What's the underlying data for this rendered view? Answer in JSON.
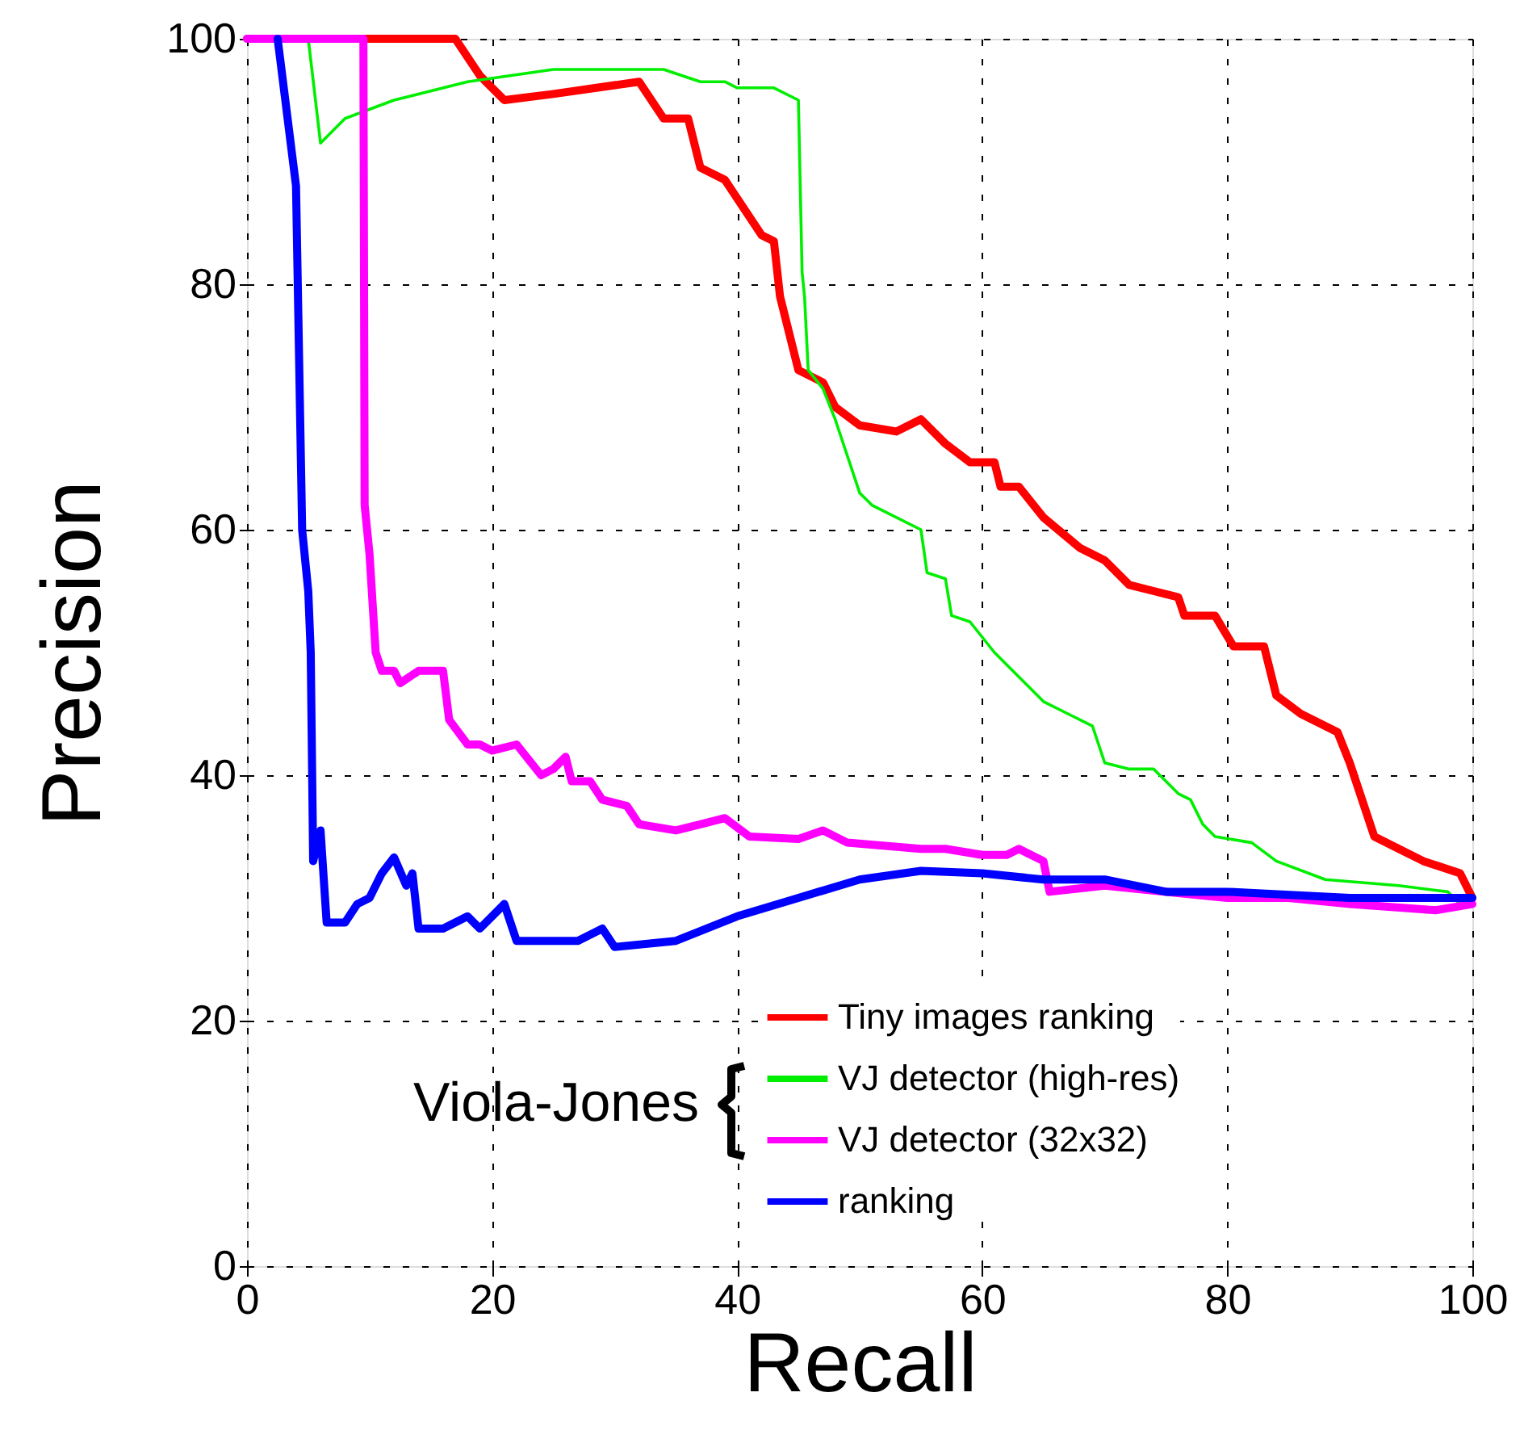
{
  "chart_data": {
    "type": "line",
    "xlabel": "Recall",
    "ylabel": "Precision",
    "xlim": [
      0,
      100
    ],
    "ylim": [
      0,
      100
    ],
    "xticks": [
      0,
      20,
      40,
      60,
      80,
      100
    ],
    "yticks": [
      0,
      20,
      40,
      60,
      80,
      100
    ],
    "grid": true,
    "legend": "bottom right",
    "line_style": "solid",
    "marker": "none",
    "annotations": [
      "Viola-Jones"
    ],
    "series": [
      {
        "name": "Tiny images ranking",
        "color": "#ff0000",
        "x": [
          0,
          17,
          19,
          21,
          25,
          32,
          34,
          36,
          37,
          39,
          42,
          43,
          43.5,
          45,
          47,
          48,
          50,
          53,
          55,
          57,
          59,
          61,
          61.5,
          63,
          65,
          68,
          70,
          72,
          74,
          76,
          76.5,
          79,
          80.5,
          83,
          84,
          86,
          89,
          90,
          91,
          92,
          94,
          96,
          99,
          100
        ],
        "values": [
          100,
          100,
          97,
          95,
          95.5,
          96.5,
          93.5,
          93.5,
          89.5,
          88.5,
          84,
          83.5,
          79,
          73,
          72,
          70,
          68.5,
          68,
          69,
          67,
          65.5,
          65.5,
          63.5,
          63.5,
          61,
          58.5,
          57.5,
          55.5,
          55,
          54.5,
          53,
          53,
          50.5,
          50.5,
          46.5,
          45,
          43.5,
          41,
          38,
          35,
          34,
          33,
          32,
          30
        ]
      },
      {
        "name": "VJ detector (high-res)",
        "color": "#00ee00",
        "x": [
          5,
          6,
          8,
          12,
          18,
          25,
          34,
          37,
          39,
          40,
          43,
          45,
          45.3,
          45.5,
          45.8,
          47,
          48,
          49,
          50,
          51,
          55,
          55.5,
          57,
          57.5,
          59,
          61,
          62,
          65,
          67,
          69,
          70,
          72,
          74,
          76,
          77,
          78,
          79,
          82,
          84,
          88,
          94,
          98,
          99
        ],
        "values": [
          100,
          91.5,
          93.5,
          95,
          96.5,
          97.5,
          97.5,
          96.5,
          96.5,
          96,
          96,
          95,
          81,
          79,
          73,
          71.5,
          69,
          66,
          63,
          62,
          60,
          56.5,
          56,
          53,
          52.5,
          50,
          49,
          46,
          45,
          44,
          41,
          40.5,
          40.5,
          38.5,
          38,
          36,
          35,
          34.5,
          33,
          31.5,
          31,
          30.5,
          29.5
        ]
      },
      {
        "name": "VJ detector (32x32)",
        "color": "#ff00ff",
        "x": [
          0,
          9.5,
          9.6,
          10,
          10.5,
          11,
          12,
          12.5,
          14,
          16,
          16.5,
          18,
          19,
          20,
          22,
          24,
          25,
          26,
          26.5,
          28,
          29,
          31,
          32,
          35,
          37,
          39,
          41,
          45,
          47,
          49,
          55,
          57,
          60,
          62,
          63,
          65,
          65.5,
          70,
          75,
          80,
          85,
          90,
          97,
          100
        ],
        "values": [
          100,
          100,
          62,
          58,
          50,
          48.5,
          48.5,
          47.5,
          48.5,
          48.5,
          44.5,
          42.5,
          42.5,
          42,
          42.5,
          40,
          40.5,
          41.5,
          39.5,
          39.5,
          38,
          37.5,
          36,
          35.5,
          36,
          36.5,
          35,
          34.8,
          35.5,
          34.5,
          34,
          34,
          33.5,
          33.5,
          34,
          33,
          30.5,
          31,
          30.5,
          30,
          30,
          29.5,
          29,
          29.5
        ]
      },
      {
        "name": "ranking",
        "color": "#0000ff",
        "x": [
          2.5,
          4,
          4.5,
          5,
          5.2,
          5.4,
          6,
          6.5,
          8,
          9,
          10,
          11,
          12,
          13,
          13.5,
          14,
          16,
          18,
          19,
          21,
          22,
          25,
          27,
          29,
          30,
          35,
          40,
          45,
          50,
          55,
          60,
          65,
          70,
          75,
          80,
          90,
          100
        ],
        "values": [
          100,
          88,
          60,
          55,
          50,
          33,
          35.5,
          28,
          28,
          29.5,
          30,
          32,
          33.3,
          31,
          32,
          27.5,
          27.5,
          28.5,
          27.5,
          29.5,
          26.5,
          26.5,
          26.5,
          27.5,
          26,
          26.5,
          28.5,
          30,
          31.5,
          32.2,
          32,
          31.5,
          31.5,
          30.5,
          30.5,
          30,
          30
        ]
      }
    ]
  }
}
